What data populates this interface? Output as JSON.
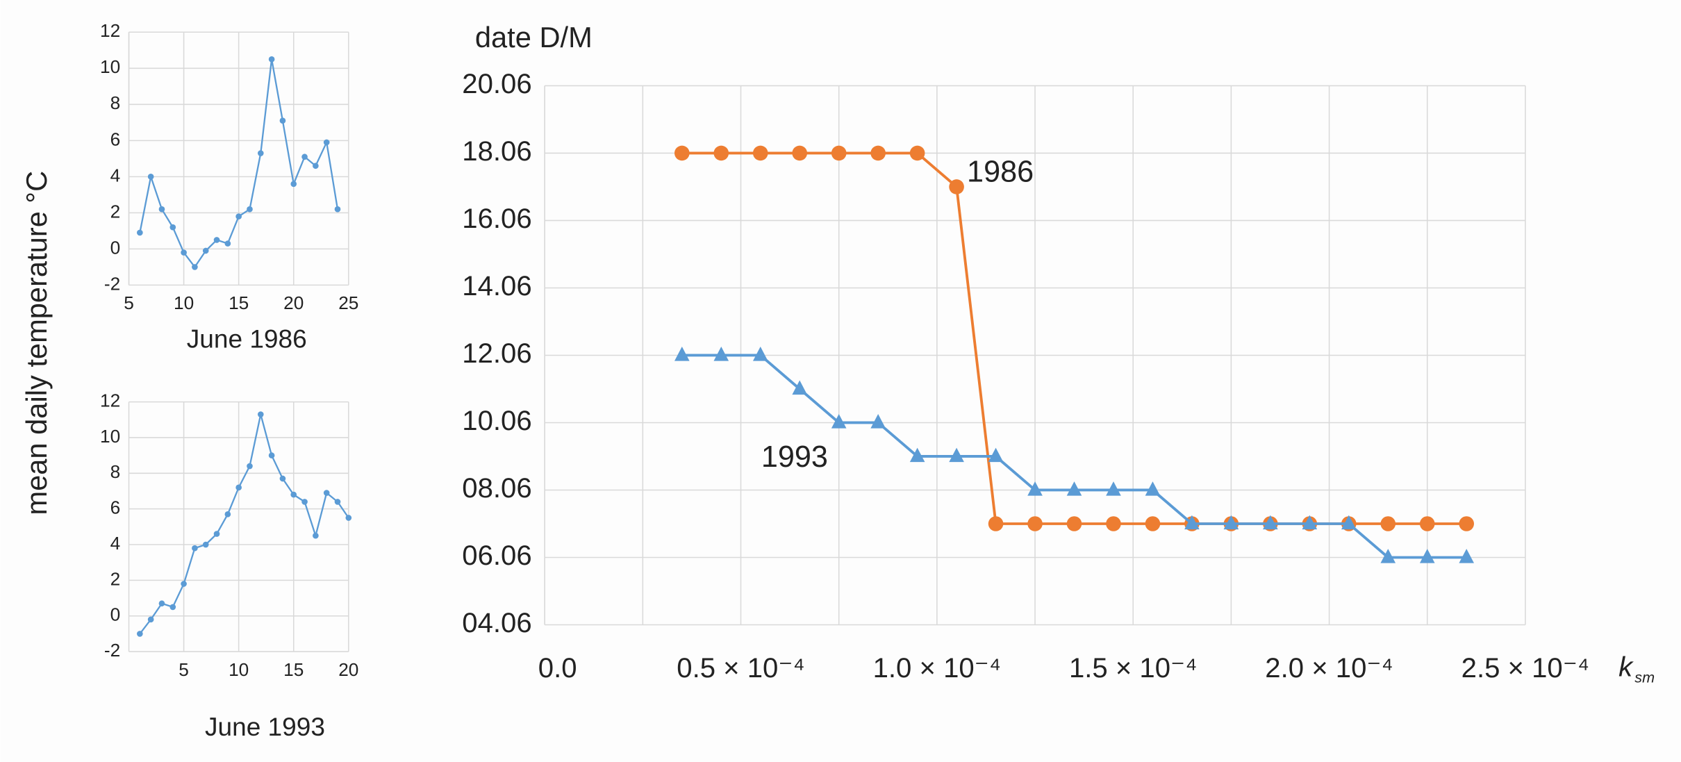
{
  "chart_data": [
    {
      "type": "line",
      "y_label": "mean daily temperature °C",
      "x_label": "June 1986",
      "x": [
        6,
        7,
        8,
        9,
        10,
        11,
        12,
        13,
        14,
        15,
        16,
        17,
        18,
        19,
        20,
        21,
        22,
        23,
        24
      ],
      "series": [
        {
          "name": "1986",
          "color": "#5b9bd5",
          "values": [
            0.9,
            4.0,
            2.2,
            1.2,
            -0.2,
            -1.0,
            -0.1,
            0.5,
            0.3,
            1.8,
            2.2,
            5.3,
            10.5,
            7.1,
            3.6,
            5.1,
            4.6,
            5.9,
            2.2
          ]
        }
      ],
      "xlim": [
        5,
        25
      ],
      "xticks": [
        5,
        10,
        15,
        20,
        25
      ],
      "ylim": [
        -2,
        12
      ],
      "yticks": [
        -2,
        0,
        2,
        4,
        6,
        8,
        10,
        12
      ],
      "grid": true
    },
    {
      "type": "line",
      "x_label": "June 1993",
      "x": [
        1,
        2,
        3,
        4,
        5,
        6,
        7,
        8,
        9,
        10,
        11,
        12,
        13,
        14,
        15,
        16,
        17,
        18,
        19,
        20
      ],
      "series": [
        {
          "name": "1993",
          "color": "#5b9bd5",
          "values": [
            -1.0,
            -0.2,
            0.7,
            0.5,
            1.8,
            3.8,
            4.0,
            4.6,
            5.7,
            7.2,
            8.4,
            11.3,
            9.0,
            7.7,
            6.8,
            6.4,
            4.5,
            6.9,
            6.4,
            5.5
          ]
        }
      ],
      "xlim": [
        0,
        20
      ],
      "xticks": [
        5,
        10,
        15,
        20
      ],
      "ylim": [
        -2,
        12
      ],
      "yticks": [
        -2,
        0,
        2,
        4,
        6,
        8,
        10,
        12
      ],
      "grid": true
    },
    {
      "type": "line",
      "y_label": "date D/M",
      "x_label": "k",
      "x_label_subscript": "sm",
      "x": [
        3.5e-05,
        4.5e-05,
        5.5e-05,
        6.5e-05,
        7.5e-05,
        8.5e-05,
        9.5e-05,
        0.000105,
        0.000115,
        0.000125,
        0.000135,
        0.000145,
        0.000155,
        0.000165,
        0.000175,
        0.000185,
        0.000195,
        0.000205,
        0.000215,
        0.000225,
        0.000235
      ],
      "series": [
        {
          "name": "1986",
          "color": "#ed7d31",
          "marker": "circle",
          "values": [
            18,
            18,
            18,
            18,
            18,
            18,
            18,
            17,
            7,
            7,
            7,
            7,
            7,
            7,
            7,
            7,
            7,
            7,
            7,
            7,
            7
          ]
        },
        {
          "name": "1993",
          "color": "#5b9bd5",
          "marker": "triangle",
          "values": [
            12,
            12,
            12,
            11,
            10,
            10,
            9,
            9,
            9,
            8,
            8,
            8,
            8,
            7,
            7,
            7,
            7,
            7,
            6,
            6,
            6
          ]
        }
      ],
      "xlim": [
        0,
        0.00025
      ],
      "xticks": [
        {
          "value": 0,
          "label": "0.0"
        },
        {
          "value": 5e-05,
          "label": "0.5 × 10⁻⁴"
        },
        {
          "value": 0.0001,
          "label": "1.0 × 10⁻⁴"
        },
        {
          "value": 0.00015,
          "label": "1.5 × 10⁻⁴"
        },
        {
          "value": 0.0002,
          "label": "2.0 × 10⁻⁴"
        },
        {
          "value": 0.00025,
          "label": "2.5 × 10⁻⁴"
        }
      ],
      "xminor_ticks": [
        2.5e-05,
        7.5e-05,
        0.000125,
        0.000175,
        0.000225
      ],
      "ylim": [
        4,
        20
      ],
      "yticks": [
        {
          "value": 4,
          "label": "04.06"
        },
        {
          "value": 6,
          "label": "06.06"
        },
        {
          "value": 8,
          "label": "08.06"
        },
        {
          "value": 10,
          "label": "10.06"
        },
        {
          "value": 12,
          "label": "12.06"
        },
        {
          "value": 14,
          "label": "14.06"
        },
        {
          "value": 16,
          "label": "16.06"
        },
        {
          "value": 18,
          "label": "18.06"
        },
        {
          "value": 20,
          "label": "20.06"
        }
      ],
      "grid": true
    }
  ]
}
